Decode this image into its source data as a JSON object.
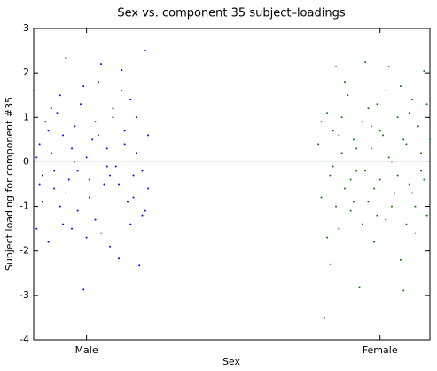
{
  "chart_data": {
    "type": "scatter",
    "title": "Sex vs. component 35 subject–loadings",
    "xlabel": "Sex",
    "ylabel": "Subject loading for component #35",
    "xlim": [
      0.82,
      2.17
    ],
    "xticks": [
      {
        "value": 1,
        "label": "Male"
      },
      {
        "value": 2,
        "label": "Female"
      }
    ],
    "ylim": [
      -4,
      3
    ],
    "yticks": [
      -4,
      -3,
      -2,
      -1,
      0,
      1,
      2,
      3
    ],
    "hline": 0,
    "grid": false,
    "series": [
      {
        "color": "#0000ff",
        "x": [
          0.82,
          0.83,
          0.84,
          0.85,
          0.86,
          0.87,
          0.88,
          0.89,
          0.9,
          0.91,
          0.92,
          0.93,
          0.94,
          0.95,
          0.96,
          0.97,
          0.98,
          0.99,
          1.0,
          1.01,
          1.02,
          1.03,
          1.04,
          1.05,
          1.06,
          1.07,
          1.08,
          1.09,
          1.1,
          1.11,
          1.12,
          1.13,
          1.14,
          1.15,
          1.16,
          1.17,
          1.18,
          1.19,
          1.2,
          1.21,
          0.83,
          0.85,
          0.87,
          0.89,
          0.91,
          0.93,
          0.95,
          0.97,
          0.99,
          1.01,
          1.03,
          1.05,
          1.07,
          1.09,
          1.11,
          1.13,
          1.15,
          1.17,
          1.19,
          1.21,
          0.84,
          0.88,
          0.92,
          0.96,
          1.0,
          1.04,
          1.08,
          1.12,
          1.16,
          1.2
        ],
        "values": [
          1.6,
          -1.5,
          0.4,
          -0.3,
          0.9,
          -1.8,
          0.2,
          -0.6,
          1.1,
          -1.0,
          0.6,
          2.34,
          -0.4,
          -1.5,
          0.8,
          -0.2,
          1.3,
          -2.87,
          0.1,
          -0.8,
          0.5,
          -1.3,
          1.8,
          2.2,
          -0.5,
          0.3,
          -1.9,
          1.0,
          -0.1,
          -2.17,
          2.06,
          0.7,
          -0.9,
          1.4,
          -0.3,
          0.2,
          -2.33,
          -1.2,
          2.5,
          -0.6,
          0.1,
          -0.9,
          0.7,
          -0.2,
          1.5,
          -0.7,
          0.3,
          -1.1,
          1.7,
          -0.4,
          0.9,
          -1.6,
          -0.1,
          1.2,
          -0.5,
          0.4,
          -1.4,
          1.0,
          -0.2,
          0.6,
          -0.5,
          1.2,
          -1.4,
          0.0,
          -1.7,
          0.6,
          -0.3,
          1.6,
          -0.8,
          -1.1
        ]
      },
      {
        "color": "#008000",
        "x": [
          1.79,
          1.8,
          1.81,
          1.82,
          1.83,
          1.84,
          1.85,
          1.86,
          1.87,
          1.88,
          1.89,
          1.9,
          1.91,
          1.92,
          1.93,
          1.94,
          1.95,
          1.96,
          1.97,
          1.98,
          1.99,
          2.0,
          2.01,
          2.02,
          2.03,
          2.04,
          2.05,
          2.06,
          2.07,
          2.08,
          2.09,
          2.1,
          2.11,
          2.12,
          2.13,
          2.14,
          2.15,
          2.16,
          2.17,
          1.8,
          1.82,
          1.84,
          1.86,
          1.88,
          1.9,
          1.92,
          1.94,
          1.96,
          1.98,
          2.0,
          2.02,
          2.04,
          2.06,
          2.08,
          2.1,
          2.12,
          2.14,
          2.16,
          1.83,
          1.87,
          1.91,
          1.95,
          1.99,
          2.03,
          2.07,
          2.11,
          2.15,
          1.85,
          1.97,
          2.09
        ],
        "values": [
          0.4,
          -0.8,
          -3.5,
          1.1,
          -0.3,
          0.7,
          2.14,
          -1.5,
          0.2,
          -0.6,
          1.5,
          -1.1,
          0.5,
          -0.2,
          -2.81,
          0.9,
          2.24,
          -0.9,
          0.3,
          -1.8,
          1.3,
          -0.4,
          0.6,
          -1.3,
          2.14,
          0.0,
          -0.7,
          1.0,
          -2.2,
          -2.89,
          0.4,
          -0.5,
          1.4,
          -1.0,
          0.8,
          -0.2,
          2.04,
          -1.2,
          0.5,
          0.9,
          -1.7,
          -0.1,
          0.6,
          1.8,
          -0.4,
          0.3,
          -1.4,
          1.2,
          -0.6,
          0.7,
          1.6,
          -1.0,
          -0.3,
          0.5,
          1.1,
          -1.6,
          0.2,
          1.3,
          -2.3,
          1.0,
          -0.9,
          -0.2,
          -1.2,
          0.1,
          1.7,
          -0.7,
          -0.4,
          -1.0,
          0.8,
          -1.4
        ]
      }
    ]
  }
}
